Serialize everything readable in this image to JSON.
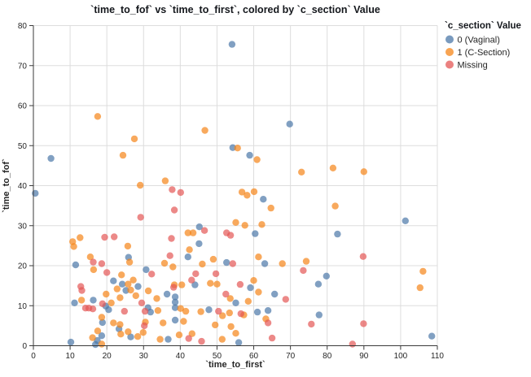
{
  "title": "`time_to_fof` vs `time_to_first`, colored by `c_section` Value",
  "chart_data": {
    "type": "scatter",
    "xlabel": "`time_to_first`",
    "ylabel": "`time_to_fof`",
    "xlim": [
      0,
      110
    ],
    "ylim": [
      0,
      80
    ],
    "x_ticks": [
      0,
      10,
      20,
      30,
      40,
      50,
      60,
      70,
      80,
      90,
      100,
      110
    ],
    "y_ticks": [
      0,
      10,
      20,
      30,
      40,
      50,
      60,
      70,
      80
    ],
    "grid": true,
    "legend_title": "`c_section` Value",
    "legend_position": "right",
    "point_opacity": 0.7,
    "series": [
      {
        "name": "0 (Vaginal)",
        "color": "#4c78a8",
        "points": [
          [
            0.5,
            38.1
          ],
          [
            4.8,
            46.8
          ],
          [
            54.1,
            75.3
          ],
          [
            69.8,
            55.4
          ],
          [
            54.3,
            49.5
          ],
          [
            58.9,
            47.6
          ],
          [
            101.3,
            31.2
          ],
          [
            82.8,
            27.9
          ],
          [
            45.2,
            29.7
          ],
          [
            45.1,
            25.5
          ],
          [
            25.9,
            22.1
          ],
          [
            42.1,
            22.2
          ],
          [
            60.4,
            28.0
          ],
          [
            52.6,
            20.8
          ],
          [
            63.0,
            20.5
          ],
          [
            62.6,
            36.6
          ],
          [
            30.7,
            19.0
          ],
          [
            11.5,
            20.2
          ],
          [
            79.8,
            17.4
          ],
          [
            77.6,
            15.4
          ],
          [
            77.8,
            7.7
          ],
          [
            108.5,
            2.4
          ],
          [
            21.8,
            16.2
          ],
          [
            24.2,
            15.4
          ],
          [
            28.5,
            14.8
          ],
          [
            25.2,
            13.8
          ],
          [
            36.4,
            12.9
          ],
          [
            16.3,
            11.4
          ],
          [
            11.2,
            10.7
          ],
          [
            19.7,
            9.9
          ],
          [
            20.5,
            9.0
          ],
          [
            31.2,
            9.5
          ],
          [
            31.9,
            8.4
          ],
          [
            44.0,
            15.2
          ],
          [
            59.1,
            14.5
          ],
          [
            65.7,
            12.9
          ],
          [
            38.6,
            12.2
          ],
          [
            38.6,
            10.9
          ],
          [
            38.6,
            9.5
          ],
          [
            38.6,
            6.4
          ],
          [
            47.8,
            9.0
          ],
          [
            55.1,
            10.7
          ],
          [
            61.0,
            8.4
          ],
          [
            63.9,
            8.8
          ],
          [
            18.8,
            5.8
          ],
          [
            23.3,
            4.2
          ],
          [
            26.5,
            2.2
          ],
          [
            10.2,
            0.9
          ],
          [
            17.4,
            1.3
          ],
          [
            16.9,
            0.3
          ],
          [
            36.7,
            1.6
          ],
          [
            55.9,
            0.8
          ],
          [
            18.6,
            2.5
          ]
        ]
      },
      {
        "name": "1 (C-Section)",
        "color": "#f58518",
        "points": [
          [
            17.5,
            57.3
          ],
          [
            27.5,
            51.7
          ],
          [
            24.4,
            47.6
          ],
          [
            46.7,
            53.8
          ],
          [
            55.6,
            49.4
          ],
          [
            60.9,
            46.5
          ],
          [
            81.6,
            44.4
          ],
          [
            90.0,
            43.5
          ],
          [
            73.0,
            43.4
          ],
          [
            35.9,
            41.2
          ],
          [
            29.1,
            40.1
          ],
          [
            56.8,
            38.4
          ],
          [
            58.2,
            37.6
          ],
          [
            60.1,
            38.5
          ],
          [
            64.7,
            34.4
          ],
          [
            82.2,
            34.9
          ],
          [
            106.1,
            18.6
          ],
          [
            105.3,
            14.5
          ],
          [
            10.7,
            26.0
          ],
          [
            12.7,
            27.0
          ],
          [
            11.0,
            24.8
          ],
          [
            25.7,
            24.9
          ],
          [
            15.5,
            22.2
          ],
          [
            26.2,
            20.9
          ],
          [
            35.7,
            20.6
          ],
          [
            42.1,
            28.2
          ],
          [
            43.5,
            28.2
          ],
          [
            42.5,
            24.0
          ],
          [
            49.0,
            21.6
          ],
          [
            46.0,
            20.4
          ],
          [
            55.1,
            30.8
          ],
          [
            57.6,
            30.1
          ],
          [
            62.2,
            30.3
          ],
          [
            61.3,
            22.2
          ],
          [
            67.8,
            20.5
          ],
          [
            74.3,
            21.1
          ],
          [
            38.0,
            19.7
          ],
          [
            38.4,
            15.2
          ],
          [
            40.4,
            15.2
          ],
          [
            48.2,
            15.6
          ],
          [
            50.0,
            15.4
          ],
          [
            60.0,
            16.3
          ],
          [
            61.3,
            13.4
          ],
          [
            16.4,
            19.0
          ],
          [
            24.0,
            17.7
          ],
          [
            27.2,
            16.4
          ],
          [
            25.8,
            15.4
          ],
          [
            22.8,
            14.2
          ],
          [
            26.5,
            13.9
          ],
          [
            19.8,
            12.9
          ],
          [
            13.1,
            11.4
          ],
          [
            21.2,
            10.7
          ],
          [
            23.6,
            12.0
          ],
          [
            27.9,
            12.5
          ],
          [
            31.3,
            13.7
          ],
          [
            33.6,
            11.8
          ],
          [
            33.9,
            8.8
          ],
          [
            40.1,
            9.3
          ],
          [
            41.5,
            8.6
          ],
          [
            45.6,
            8.5
          ],
          [
            51.5,
            7.5
          ],
          [
            53.4,
            8.2
          ],
          [
            57.3,
            7.7
          ],
          [
            63.3,
            6.7
          ],
          [
            18.6,
            7.1
          ],
          [
            21.8,
            5.7
          ],
          [
            23.6,
            5.3
          ],
          [
            23.8,
            2.9
          ],
          [
            25.8,
            3.5
          ],
          [
            28.4,
            2.3
          ],
          [
            30.5,
            5.9
          ],
          [
            29.9,
            3.3
          ],
          [
            16.1,
            2.0
          ],
          [
            17.5,
            3.7
          ],
          [
            18.6,
            0.4
          ],
          [
            35.3,
            5.7
          ],
          [
            39.7,
            2.7
          ],
          [
            40.9,
            6.1
          ],
          [
            43.2,
            3.0
          ],
          [
            49.5,
            5.2
          ],
          [
            51.4,
            1.6
          ],
          [
            53.8,
            4.8
          ],
          [
            55.1,
            3.1
          ],
          [
            34.5,
            1.6
          ],
          [
            53.6,
            11.8
          ],
          [
            58.5,
            11.1
          ]
        ]
      },
      {
        "name": "Missing",
        "color": "#e45756",
        "points": [
          [
            37.8,
            39.0
          ],
          [
            40.1,
            38.3
          ],
          [
            29.2,
            32.1
          ],
          [
            38.4,
            33.9
          ],
          [
            19.4,
            27.1
          ],
          [
            22.0,
            27.2
          ],
          [
            37.6,
            26.8
          ],
          [
            16.3,
            20.9
          ],
          [
            18.6,
            20.5
          ],
          [
            20.0,
            18.3
          ],
          [
            37.2,
            22.5
          ],
          [
            46.6,
            28.8
          ],
          [
            52.6,
            28.2
          ],
          [
            53.7,
            27.6
          ],
          [
            54.3,
            20.5
          ],
          [
            73.5,
            18.8
          ],
          [
            89.8,
            22.3
          ],
          [
            44.2,
            18.0
          ],
          [
            43.1,
            16.4
          ],
          [
            49.7,
            18.0
          ],
          [
            38.2,
            14.6
          ],
          [
            56.3,
            15.3
          ],
          [
            52.4,
            12.9
          ],
          [
            68.7,
            11.6
          ],
          [
            12.9,
            14.8
          ],
          [
            13.2,
            13.8
          ],
          [
            14.2,
            9.4
          ],
          [
            15.1,
            9.4
          ],
          [
            16.2,
            9.2
          ],
          [
            18.8,
            10.5
          ],
          [
            24.8,
            8.6
          ],
          [
            29.5,
            10.7
          ],
          [
            30.4,
            8.6
          ],
          [
            50.4,
            8.6
          ],
          [
            56.5,
            8.0
          ],
          [
            63.9,
            5.7
          ],
          [
            30.2,
            5.0
          ],
          [
            32.2,
            17.9
          ],
          [
            42.3,
            1.8
          ],
          [
            45.8,
            1.1
          ],
          [
            65.0,
            1.9
          ],
          [
            75.7,
            5.4
          ],
          [
            89.9,
            5.5
          ],
          [
            86.9,
            0.4
          ]
        ]
      }
    ]
  },
  "style": {
    "grid_color": "#dddddd",
    "domain_color": "#3a3a3a",
    "tick_label_color": "#262626",
    "title_color": "#14171c",
    "axis_title_color": "#262626",
    "legend_text_color": "#262626"
  }
}
